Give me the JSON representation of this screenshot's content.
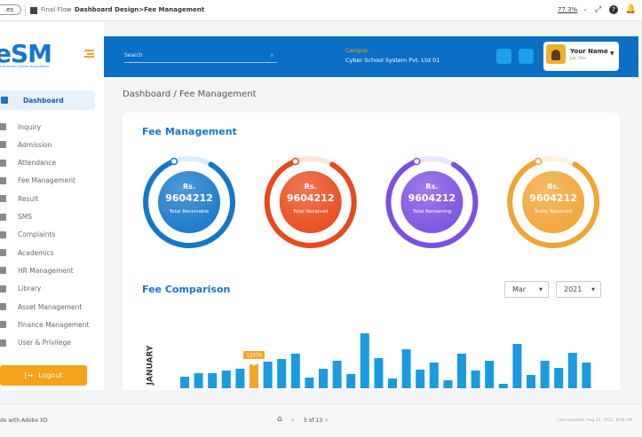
{
  "toolbar": {
    "badge": ".es",
    "project": "Final Flow",
    "separator": ">",
    "breadcrumb": "Dashboard Design>Fee Management",
    "zoom": "77.3%"
  },
  "sidebar": {
    "logo": "eSM",
    "tagline": "ELECTRONIC SCHOOL MANAGEMENT",
    "menu": [
      "Dashboard",
      "Inquiry",
      "Admission",
      "Attendance",
      "Fee Management",
      "Result",
      "SMS",
      "Complaints",
      "Academics",
      "HR Management",
      "Library",
      "Asset Management",
      "Finance Management",
      "User & Privilege"
    ],
    "logout": "Logout"
  },
  "header": {
    "search_placeholder": "Search",
    "campus_label": "Campus:",
    "campus": "Cyber School System Pvt. Ltd 01",
    "user_name": "Your Name",
    "job_title": "Job Title"
  },
  "page_title": "Dashboard / Fee Management",
  "fee_management": {
    "title": "Fee Management",
    "cards": [
      {
        "currency": "Rs.",
        "amount": 9604212,
        "label": "Total Receivable",
        "color": "#1677c9"
      },
      {
        "currency": "Rs.",
        "amount": 9604212,
        "label": "Total Received",
        "color": "#e84a1a"
      },
      {
        "currency": "Rs.",
        "amount": 9604212,
        "label": "Total Remaining",
        "color": "#7a50e2"
      },
      {
        "currency": "Rs.",
        "amount": 9604212,
        "label": "Today Received",
        "color": "#f0a434"
      }
    ]
  },
  "fee_comparison": {
    "title": "Fee Comparison",
    "month": "Mar",
    "year": "2021",
    "chart": {
      "type": "bar",
      "y_label": "JANUARY",
      "values": [
        6250,
        8170,
        8170,
        9610,
        10580,
        12978,
        14420,
        15860,
        18750,
        5770,
        10580,
        14900,
        7690,
        29800,
        16340,
        5290,
        21150,
        10090,
        13940,
        4330,
        18750,
        9610,
        14900,
        2400,
        24030,
        7210,
        14900,
        11060,
        19230,
        13940
      ],
      "ylim": [
        0,
        37500
      ],
      "color": "#1a9be0",
      "highlight": 5,
      "highlight_color": "#f2a62b"
    }
  },
  "footer": {
    "made_with": "de with Adobe XD",
    "page": "5 of 13",
    "updated": "Last updated: Aug 31, 2021, 9:44 AM"
  }
}
